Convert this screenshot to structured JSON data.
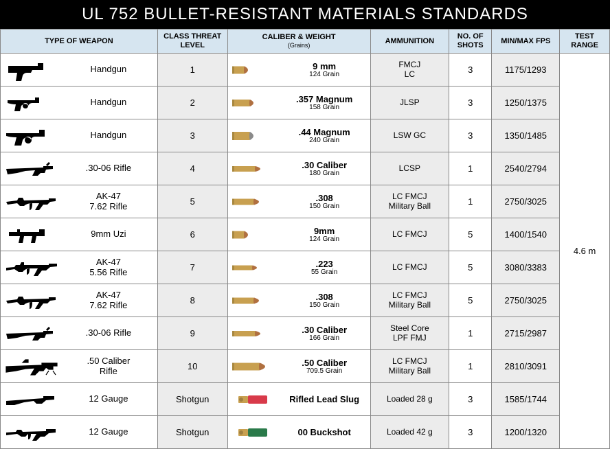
{
  "title": "UL 752 BULLET-RESISTANT MATERIALS STANDARDS",
  "headers": {
    "weapon": "TYPE OF WEAPON",
    "level": "CLASS THREAT LEVEL",
    "caliber": "CALIBER & WEIGHT",
    "caliber_sub": "(Grains)",
    "ammo": "AMMUNITION",
    "shots": "NO. OF SHOTS",
    "fps": "MIN/MAX FPS",
    "range": "TEST RANGE"
  },
  "test_range": "4.6 m",
  "rows": [
    {
      "weapon_icon": "pistol",
      "weapon": "Handgun",
      "level": "1",
      "bullet_icon": "bullet-9mm",
      "caliber": "9 mm",
      "grain": "124 Grain",
      "ammo": "FMCJ\nLC",
      "shots": "3",
      "fps": "1175/1293"
    },
    {
      "weapon_icon": "revolver",
      "weapon": "Handgun",
      "level": "2",
      "bullet_icon": "bullet-357",
      "caliber": ".357 Magnum",
      "grain": "158 Grain",
      "ammo": "JLSP",
      "shots": "3",
      "fps": "1250/1375"
    },
    {
      "weapon_icon": "revolver-big",
      "weapon": "Handgun",
      "level": "3",
      "bullet_icon": "bullet-44",
      "caliber": ".44 Magnum",
      "grain": "240 Grain",
      "ammo": "LSW GC",
      "shots": "3",
      "fps": "1350/1485"
    },
    {
      "weapon_icon": "rifle-bolt",
      "weapon": ".30-06 Rifle",
      "level": "4",
      "bullet_icon": "bullet-rifle",
      "caliber": ".30 Caliber",
      "grain": "180 Grain",
      "ammo": "LCSP",
      "shots": "1",
      "fps": "2540/2794"
    },
    {
      "weapon_icon": "ak47",
      "weapon": "AK-47\n7.62 Rifle",
      "level": "5",
      "bullet_icon": "bullet-308",
      "caliber": ".308",
      "grain": "150 Grain",
      "ammo": "LC FMCJ\nMilitary Ball",
      "shots": "1",
      "fps": "2750/3025"
    },
    {
      "weapon_icon": "uzi",
      "weapon": "9mm Uzi",
      "level": "6",
      "bullet_icon": "bullet-9mm",
      "caliber": "9mm",
      "grain": "124 Grain",
      "ammo": "LC FMCJ",
      "shots": "5",
      "fps": "1400/1540"
    },
    {
      "weapon_icon": "ar15",
      "weapon": "AK-47\n5.56 Rifle",
      "level": "7",
      "bullet_icon": "bullet-223",
      "caliber": ".223",
      "grain": "55 Grain",
      "ammo": "LC FMCJ",
      "shots": "5",
      "fps": "3080/3383"
    },
    {
      "weapon_icon": "ak47",
      "weapon": "AK-47\n7.62 Rifle",
      "level": "8",
      "bullet_icon": "bullet-308",
      "caliber": ".308",
      "grain": "150 Grain",
      "ammo": "LC FMCJ\nMilitary Ball",
      "shots": "5",
      "fps": "2750/3025"
    },
    {
      "weapon_icon": "rifle-bolt",
      "weapon": ".30-06 Rifle",
      "level": "9",
      "bullet_icon": "bullet-rifle",
      "caliber": ".30 Caliber",
      "grain": "166 Grain",
      "ammo": "Steel Core\nLPF FMJ",
      "shots": "1",
      "fps": "2715/2987"
    },
    {
      "weapon_icon": "rifle-50",
      "weapon": ".50 Caliber\nRifle",
      "level": "10",
      "bullet_icon": "bullet-50",
      "caliber": ".50 Caliber",
      "grain": "709.5 Grain",
      "ammo": "LC FMCJ\nMilitary Ball",
      "shots": "1",
      "fps": "2810/3091"
    },
    {
      "weapon_icon": "shotgun",
      "weapon": "12 Gauge",
      "level": "Shotgun",
      "bullet_icon": "shell-red",
      "caliber": "Rifled Lead Slug",
      "grain": "",
      "ammo": "Loaded 28 g",
      "shots": "3",
      "fps": "1585/1744"
    },
    {
      "weapon_icon": "shotgun-tactical",
      "weapon": "12 Gauge",
      "level": "Shotgun",
      "bullet_icon": "shell-green",
      "caliber": "00 Buckshot",
      "grain": "",
      "ammo": "Loaded 42 g",
      "shots": "3",
      "fps": "1200/1320"
    }
  ],
  "styling": {
    "header_bg": "#d6e5f0",
    "alt_bg": "#ececec",
    "border_color": "#888888",
    "title_bg": "#000000",
    "title_color": "#ffffff",
    "bullet_brass": "#c8a050",
    "bullet_copper": "#b07040",
    "bullet_lead": "#8a8a8a",
    "shell_red": "#d83a4a",
    "shell_green": "#2a7a4a",
    "shell_brass": "#c8a050"
  }
}
